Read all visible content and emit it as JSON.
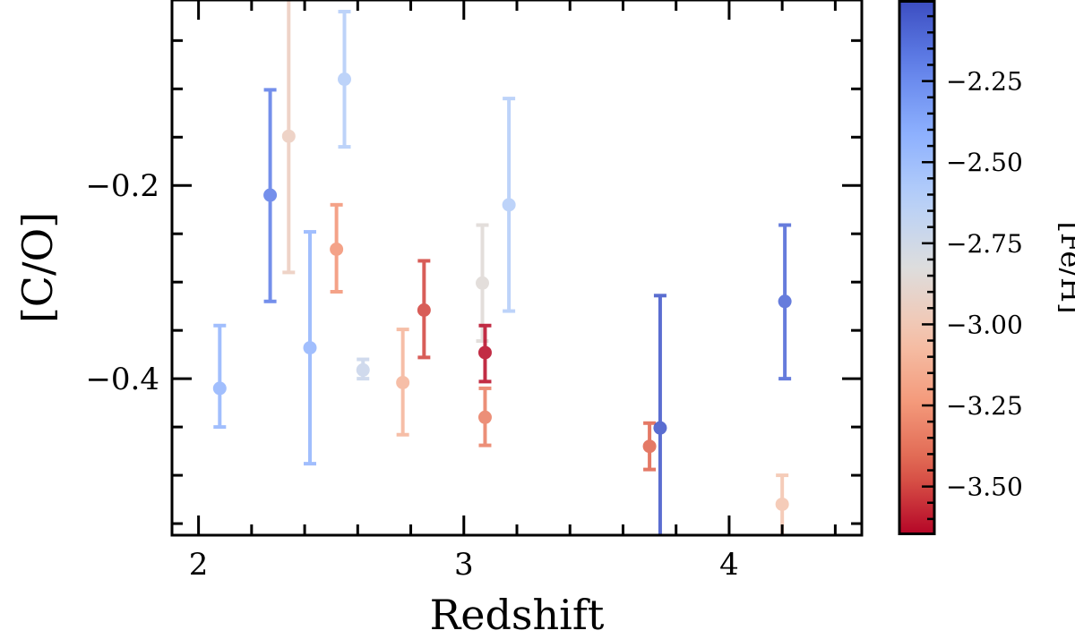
{
  "chart_data": {
    "type": "scatter",
    "title": "",
    "xlabel": "Redshift",
    "ylabel": "[C/O]",
    "xlim": [
      1.9,
      4.5
    ],
    "ylim": [
      -0.562,
      -0.008
    ],
    "x_ticks": [
      2,
      3,
      4
    ],
    "x_tick_labels": [
      "2",
      "3",
      "4"
    ],
    "y_ticks": [
      -0.2,
      -0.4
    ],
    "y_tick_labels": [
      "−0.2",
      "−0.4"
    ],
    "grid": false,
    "colorbar": {
      "label": "[Fe/H]",
      "colormap": "coolwarm_r",
      "range": [
        -3.65,
        -2.0
      ],
      "ticks": [
        -2.25,
        -2.5,
        -2.75,
        -3.0,
        -3.25,
        -3.5
      ],
      "tick_labels": [
        "−2.25",
        "−2.50",
        "−2.75",
        "−3.00",
        "−3.25",
        "−3.50"
      ]
    },
    "points": [
      {
        "x": 2.08,
        "y": -0.41,
        "y_hi": -0.345,
        "y_lo": -0.45,
        "feh": -2.45
      },
      {
        "x": 2.27,
        "y": -0.21,
        "y_hi": -0.101,
        "y_lo": -0.32,
        "feh": -2.2
      },
      {
        "x": 2.34,
        "y": -0.149,
        "y_hi": -0.005,
        "y_lo": -0.29,
        "feh": -2.95
      },
      {
        "x": 2.42,
        "y": -0.368,
        "y_hi": -0.248,
        "y_lo": -0.488,
        "feh": -2.45
      },
      {
        "x": 2.52,
        "y": -0.266,
        "y_hi": -0.22,
        "y_lo": -0.31,
        "feh": -3.25
      },
      {
        "x": 2.55,
        "y": -0.09,
        "y_hi": -0.02,
        "y_lo": -0.16,
        "feh": -2.6
      },
      {
        "x": 2.62,
        "y": -0.391,
        "y_hi": -0.38,
        "y_lo": -0.4,
        "feh": -2.72
      },
      {
        "x": 2.77,
        "y": -0.404,
        "y_hi": -0.349,
        "y_lo": -0.458,
        "feh": -3.1
      },
      {
        "x": 2.85,
        "y": -0.329,
        "y_hi": -0.278,
        "y_lo": -0.378,
        "feh": -3.5
      },
      {
        "x": 3.07,
        "y": -0.301,
        "y_hi": -0.241,
        "y_lo": -0.361,
        "feh": -2.85
      },
      {
        "x": 3.08,
        "y": -0.373,
        "y_hi": -0.345,
        "y_lo": -0.403,
        "feh": -3.62
      },
      {
        "x": 3.08,
        "y": -0.44,
        "y_hi": -0.41,
        "y_lo": -0.469,
        "feh": -3.33
      },
      {
        "x": 3.17,
        "y": -0.22,
        "y_hi": -0.11,
        "y_lo": -0.33,
        "feh": -2.6
      },
      {
        "x": 3.7,
        "y": -0.47,
        "y_hi": -0.446,
        "y_lo": -0.494,
        "feh": -3.42
      },
      {
        "x": 3.74,
        "y": -0.451,
        "y_hi": -0.314,
        "y_lo": -0.6,
        "feh": -2.05
      },
      {
        "x": 4.21,
        "y": -0.32,
        "y_hi": -0.241,
        "y_lo": -0.4,
        "feh": -2.12
      },
      {
        "x": 4.2,
        "y": -0.53,
        "y_hi": -0.5,
        "y_lo": -0.6,
        "feh": -3.02
      }
    ]
  }
}
